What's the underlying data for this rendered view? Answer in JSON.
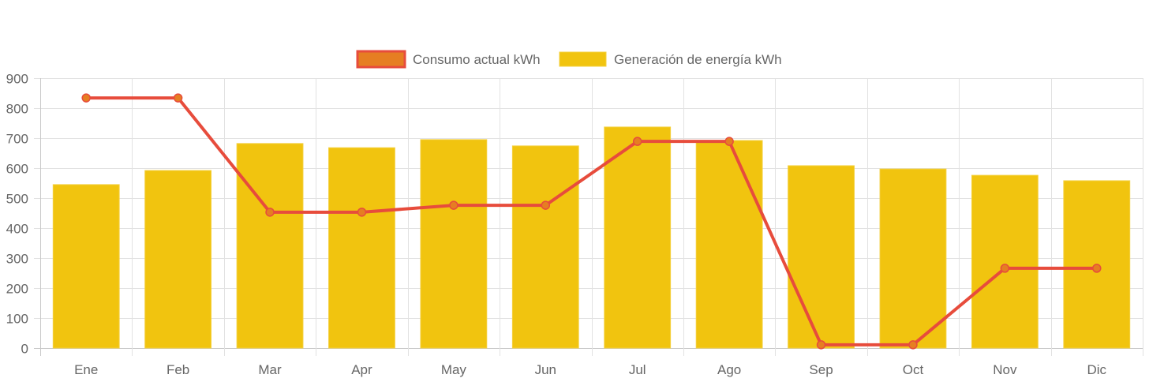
{
  "chart_data": {
    "type": "bar",
    "title": "",
    "xlabel": "",
    "ylabel": "",
    "ylim": [
      0,
      900
    ],
    "yticks": [
      0,
      100,
      200,
      300,
      400,
      500,
      600,
      700,
      800,
      900
    ],
    "grid": true,
    "legend_position": "top-center",
    "categories": [
      "Ene",
      "Feb",
      "Mar",
      "Apr",
      "May",
      "Jun",
      "Jul",
      "Ago",
      "Sep",
      "Oct",
      "Nov",
      "Dic"
    ],
    "series": [
      {
        "name": "Consumo actual kWh",
        "type": "line",
        "color": "#e74c3c",
        "point_color": "#e67e22",
        "values": [
          834,
          834,
          453,
          453,
          476,
          476,
          689,
          689,
          11,
          11,
          266,
          266
        ]
      },
      {
        "name": "Generación de energía kWh",
        "type": "bar",
        "color": "#f1c40f",
        "values": [
          545,
          592,
          682,
          668,
          695,
          674,
          737,
          692,
          608,
          597,
          576,
          558
        ]
      }
    ]
  }
}
